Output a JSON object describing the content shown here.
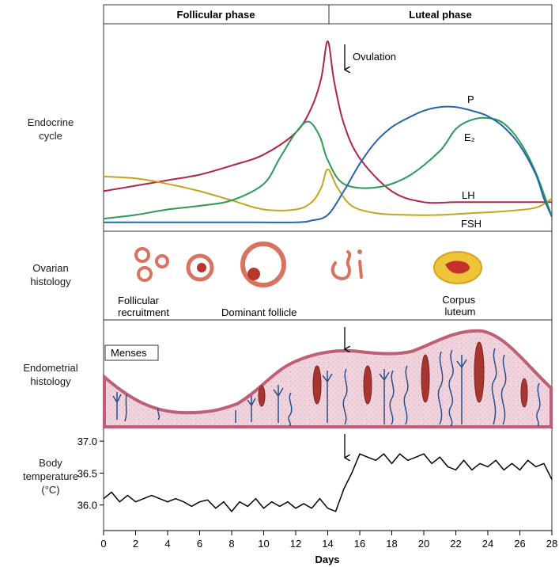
{
  "phases": {
    "follicular": "Follicular phase",
    "luteal": "Luteal phase"
  },
  "section_labels": {
    "endocrine": [
      "Endocrine",
      "cycle"
    ],
    "ovarian": [
      "Ovarian",
      "histology"
    ],
    "endometrial": [
      "Endometrial",
      "histology"
    ],
    "temperature": [
      "Body",
      "temperature",
      "(°C)"
    ]
  },
  "annotations": {
    "ovulation": "Ovulation",
    "menses": "Menses",
    "follicular_recruitment": [
      "Follicular",
      "recruitment"
    ],
    "dominant_follicle": "Dominant follicle",
    "corpus_luteum": [
      "Corpus",
      "luteum"
    ]
  },
  "colors": {
    "lh": "#b0234a",
    "fsh": "#c3a51c",
    "e2": "#2c9a56",
    "p": "#2466a6",
    "follicle_ring": "#d9735f",
    "follicle_core": "#b8362d",
    "corpus_outer": "#eec43a",
    "corpus_inner": "#c4322a",
    "endometrium": "#f1d3dd",
    "endometrium_edge": "#bf5f73",
    "gland": "#2a4f8a",
    "temp_line": "#000000"
  },
  "icons": [
    "down-arrow-icon"
  ],
  "chart_data": [
    {
      "type": "line",
      "title": "",
      "xlabel": "",
      "ylabel": "",
      "xlim": [
        0,
        28
      ],
      "ylim": [
        0,
        1
      ],
      "series": [
        {
          "name": "LH",
          "x": [
            0,
            2,
            4,
            6,
            8,
            10,
            12,
            13,
            13.6,
            14,
            14.4,
            15,
            16,
            18,
            20,
            22,
            24,
            26,
            28
          ],
          "y": [
            0.18,
            0.21,
            0.24,
            0.27,
            0.32,
            0.38,
            0.5,
            0.64,
            0.8,
            1.0,
            0.78,
            0.55,
            0.36,
            0.18,
            0.12,
            0.12,
            0.12,
            0.12,
            0.12
          ]
        },
        {
          "name": "FSH",
          "x": [
            0,
            2,
            4,
            6,
            8,
            10,
            12,
            13,
            13.6,
            14,
            14.6,
            15.5,
            17,
            19,
            21,
            23,
            25,
            27,
            28
          ],
          "y": [
            0.26,
            0.25,
            0.22,
            0.18,
            0.13,
            0.08,
            0.08,
            0.12,
            0.2,
            0.3,
            0.2,
            0.1,
            0.06,
            0.05,
            0.05,
            0.06,
            0.07,
            0.09,
            0.14
          ]
        },
        {
          "name": "E₂",
          "x": [
            0,
            2,
            4,
            6,
            8,
            10,
            11,
            12,
            12.8,
            13.5,
            14,
            15,
            17,
            19,
            21,
            22,
            23,
            24,
            25,
            26,
            27,
            28
          ],
          "y": [
            0.03,
            0.05,
            0.08,
            0.1,
            0.13,
            0.22,
            0.36,
            0.5,
            0.56,
            0.48,
            0.35,
            0.22,
            0.2,
            0.26,
            0.4,
            0.52,
            0.57,
            0.58,
            0.55,
            0.45,
            0.28,
            0.04
          ]
        },
        {
          "name": "P",
          "x": [
            0,
            4,
            8,
            12,
            13,
            14,
            15,
            16,
            17,
            18,
            19,
            20,
            21,
            22,
            23,
            24,
            25,
            26,
            27,
            27.5,
            28
          ],
          "y": [
            0.01,
            0.01,
            0.01,
            0.01,
            0.02,
            0.05,
            0.18,
            0.33,
            0.45,
            0.53,
            0.58,
            0.62,
            0.64,
            0.64,
            0.62,
            0.59,
            0.53,
            0.43,
            0.27,
            0.14,
            0.04
          ]
        }
      ]
    },
    {
      "type": "line",
      "title": "",
      "xlabel": "Days",
      "ylabel": "Body temperature (°C)",
      "xlim": [
        0,
        28
      ],
      "ylim": [
        35.6,
        37.15
      ],
      "x_ticks": [
        0,
        2,
        4,
        6,
        8,
        10,
        12,
        14,
        16,
        18,
        20,
        22,
        24,
        26,
        28
      ],
      "y_ticks": [
        36.0,
        36.5,
        37.0
      ],
      "series": [
        {
          "name": "",
          "x": [
            0,
            0.5,
            1,
            1.5,
            2,
            2.5,
            3,
            3.5,
            4,
            4.5,
            5,
            5.5,
            6,
            6.5,
            7,
            7.5,
            8,
            8.5,
            9,
            9.5,
            10,
            10.5,
            11,
            11.5,
            12,
            12.5,
            13,
            13.5,
            14,
            14.5,
            15,
            15.5,
            16,
            16.5,
            17,
            17.5,
            18,
            18.5,
            19,
            19.5,
            20,
            20.5,
            21,
            21.5,
            22,
            22.5,
            23,
            23.5,
            24,
            24.5,
            25,
            25.5,
            26,
            26.5,
            27,
            27.5,
            28
          ],
          "y": [
            36.1,
            36.2,
            36.05,
            36.15,
            36.05,
            36.1,
            36.15,
            36.1,
            36.05,
            36.1,
            36.05,
            35.98,
            36.05,
            36.08,
            35.95,
            36.05,
            35.9,
            36.05,
            35.98,
            36.1,
            35.95,
            36.05,
            35.98,
            36.05,
            35.95,
            36.02,
            35.95,
            36.1,
            35.95,
            35.9,
            36.25,
            36.5,
            36.8,
            36.75,
            36.7,
            36.8,
            36.65,
            36.8,
            36.7,
            36.75,
            36.8,
            36.65,
            36.75,
            36.6,
            36.55,
            36.7,
            36.55,
            36.65,
            36.6,
            36.7,
            36.55,
            36.65,
            36.55,
            36.7,
            36.6,
            36.65,
            36.4
          ]
        }
      ]
    }
  ]
}
